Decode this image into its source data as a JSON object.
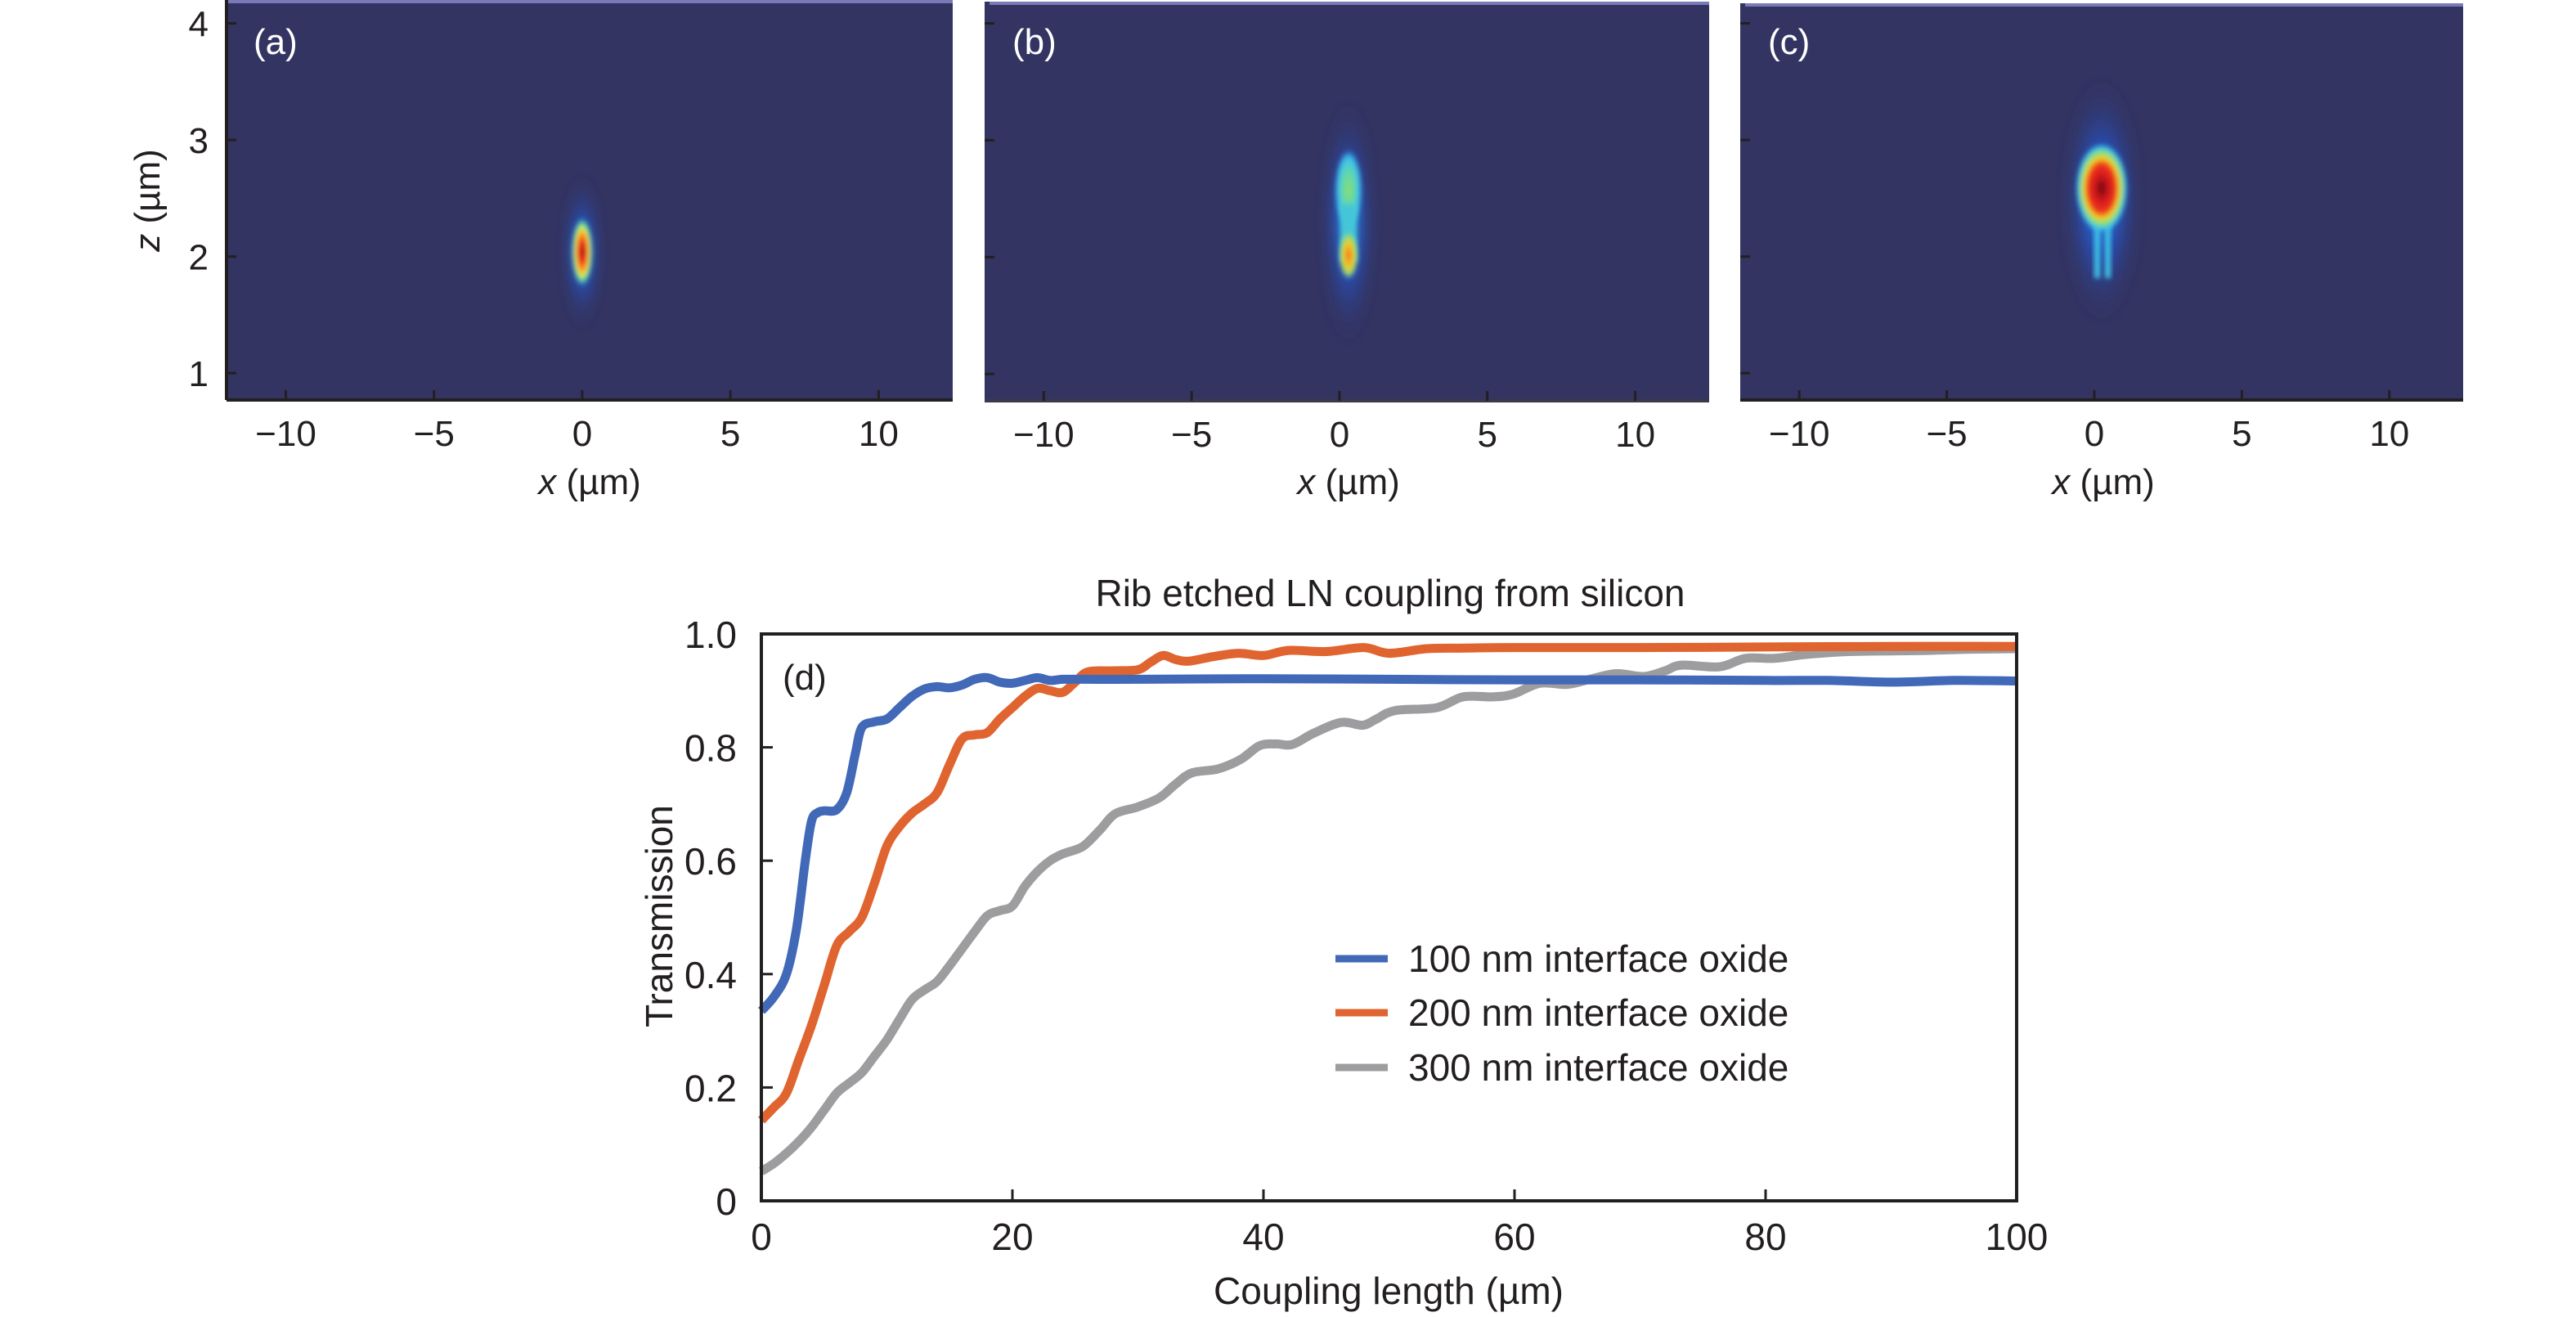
{
  "figure": {
    "panels_top": [
      {
        "id": "a",
        "label": "(a)",
        "xlabel_var": "x",
        "xlabel_unit": " (µm)",
        "ylabel_var": "z",
        "ylabel_unit": " (µm)",
        "show_ylabel": true,
        "show_yticklabels": true,
        "x_ticks": [
          "−10",
          "−5",
          "0",
          "5",
          "10"
        ],
        "x_tick_values": [
          -10,
          -5,
          0,
          5,
          10
        ],
        "y_ticks": [
          "1",
          "2",
          "3",
          "4"
        ],
        "y_tick_values": [
          1,
          2,
          3,
          4
        ],
        "xlim": [
          -12,
          12.5
        ],
        "ylim": [
          0.77,
          4.2
        ],
        "mode": "Tightly confined mode in silicon waveguide, centered at x≈0, z≈2.0 µm"
      },
      {
        "id": "b",
        "label": "(b)",
        "xlabel_var": "x",
        "xlabel_unit": " (µm)",
        "show_ylabel": false,
        "show_yticklabels": false,
        "x_ticks": [
          "−10",
          "−5",
          "0",
          "5",
          "10"
        ],
        "x_tick_values": [
          -10,
          -5,
          0,
          5,
          10
        ],
        "y_tick_values": [
          1,
          2,
          3,
          4
        ],
        "xlim": [
          -12,
          12.5
        ],
        "ylim": [
          0.77,
          4.2
        ],
        "mode": "Hybrid mode transitioning: hot spot at z≈2.0 µm with lobe extending up to z≈2.6 µm"
      },
      {
        "id": "c",
        "label": "(c)",
        "xlabel_var": "x",
        "xlabel_unit": " (µm)",
        "show_ylabel": false,
        "show_yticklabels": false,
        "x_ticks": [
          "−10",
          "−5",
          "0",
          "5",
          "10"
        ],
        "x_tick_values": [
          -10,
          -5,
          0,
          5,
          10
        ],
        "y_tick_values": [
          1,
          2,
          3,
          4
        ],
        "xlim": [
          -12,
          12.5
        ],
        "ylim": [
          0.77,
          4.2
        ],
        "mode": "Mode transferred to LN rib, centered at x≈0, z≈2.6 µm"
      }
    ],
    "colors": {
      "heatmap_background": "#333462",
      "heatmap_top_edge": "#7a7ab8",
      "axis": "#231f20",
      "series_100": "#4169b8",
      "series_200": "#e0642f",
      "series_300": "#9d9d9f"
    }
  },
  "chart_data": [
    {
      "type": "heatmap",
      "panel": "a",
      "title": "",
      "xlabel": "x (µm)",
      "ylabel": "z (µm)",
      "xlim": [
        -12,
        12.5
      ],
      "ylim": [
        0.77,
        4.2
      ],
      "peak": {
        "x": 0,
        "z": 2.04
      },
      "annotation": "(a)"
    },
    {
      "type": "heatmap",
      "panel": "b",
      "title": "",
      "xlabel": "x (µm)",
      "ylabel": "",
      "xlim": [
        -12,
        12.5
      ],
      "ylim": [
        0.77,
        4.2
      ],
      "peak": {
        "x": 0,
        "z": 2.0
      },
      "secondary_lobe": {
        "x": 0,
        "z": 2.55
      },
      "annotation": "(b)"
    },
    {
      "type": "heatmap",
      "panel": "c",
      "title": "",
      "xlabel": "x (µm)",
      "ylabel": "",
      "xlim": [
        -12,
        12.5
      ],
      "ylim": [
        0.77,
        4.2
      ],
      "peak": {
        "x": 0,
        "z": 2.58
      },
      "annotation": "(c)"
    },
    {
      "type": "line",
      "panel": "d",
      "title": "Rib etched LN coupling from silicon",
      "annotation": "(d)",
      "xlabel": "Coupling length (µm)",
      "ylabel": "Transmission",
      "xlim": [
        0,
        100
      ],
      "ylim": [
        0,
        1.0
      ],
      "x_ticks": [
        0,
        20,
        40,
        60,
        80,
        100
      ],
      "x_tick_labels": [
        "0",
        "20",
        "40",
        "60",
        "80",
        "100"
      ],
      "y_ticks": [
        0,
        0.2,
        0.4,
        0.6,
        0.8,
        1.0
      ],
      "y_tick_labels": [
        "0",
        "0.2",
        "0.4",
        "0.6",
        "0.8",
        "1.0"
      ],
      "grid": false,
      "legend_position": "center-right",
      "series": [
        {
          "name": "100 nm interface oxide",
          "color": "#4169b8",
          "x": [
            0,
            1,
            2,
            2.8,
            3.5,
            4,
            4.5,
            5,
            6,
            6.8,
            7.5,
            8,
            9,
            10,
            11,
            12,
            13,
            14,
            15,
            16,
            17,
            18,
            19,
            20,
            21,
            22,
            23,
            24,
            26,
            30,
            40,
            50,
            60,
            70,
            80,
            85,
            90,
            95,
            100
          ],
          "y": [
            0.335,
            0.36,
            0.4,
            0.48,
            0.6,
            0.67,
            0.685,
            0.688,
            0.69,
            0.72,
            0.79,
            0.835,
            0.845,
            0.85,
            0.87,
            0.89,
            0.903,
            0.907,
            0.905,
            0.91,
            0.92,
            0.923,
            0.915,
            0.913,
            0.918,
            0.923,
            0.918,
            0.92,
            0.92,
            0.92,
            0.921,
            0.92,
            0.919,
            0.919,
            0.918,
            0.918,
            0.915,
            0.918,
            0.917
          ]
        },
        {
          "name": "200 nm interface oxide",
          "color": "#e0642f",
          "x": [
            0,
            1,
            2,
            3,
            4,
            5,
            6,
            7,
            8,
            9,
            10,
            11,
            12,
            13,
            14,
            15,
            16,
            17,
            18,
            19,
            20,
            21,
            22,
            23,
            24,
            25,
            26,
            28,
            30,
            31,
            32,
            33,
            34,
            36,
            38,
            40,
            42,
            45,
            48,
            50,
            53,
            56,
            60,
            70,
            80,
            90,
            100
          ],
          "y": [
            0.142,
            0.165,
            0.19,
            0.25,
            0.31,
            0.38,
            0.45,
            0.475,
            0.5,
            0.56,
            0.626,
            0.66,
            0.684,
            0.7,
            0.72,
            0.77,
            0.815,
            0.822,
            0.826,
            0.85,
            0.87,
            0.89,
            0.904,
            0.9,
            0.897,
            0.915,
            0.933,
            0.935,
            0.937,
            0.95,
            0.962,
            0.955,
            0.952,
            0.96,
            0.966,
            0.962,
            0.971,
            0.969,
            0.976,
            0.966,
            0.974,
            0.975,
            0.976,
            0.976,
            0.977,
            0.978,
            0.978
          ]
        },
        {
          "name": "300 nm interface oxide",
          "color": "#9d9d9f",
          "x": [
            0,
            1,
            2,
            3,
            4,
            5,
            6,
            7,
            8,
            9,
            10,
            11,
            12,
            13,
            14,
            15,
            16,
            17,
            18,
            19,
            20,
            21,
            22,
            23,
            24,
            25.6,
            27,
            28.2,
            30,
            31.7,
            33,
            34.3,
            36.4,
            38.2,
            39.7,
            41,
            42.3,
            44,
            46.2,
            47.9,
            49,
            50.5,
            53.8,
            55.9,
            58.3,
            59.9,
            62,
            64.2,
            66,
            68.1,
            70.3,
            72,
            73.3,
            76.3,
            78.4,
            80.7,
            83.3,
            86.6,
            90,
            93,
            96,
            100
          ],
          "y": [
            0.052,
            0.066,
            0.084,
            0.105,
            0.13,
            0.16,
            0.19,
            0.208,
            0.226,
            0.255,
            0.284,
            0.32,
            0.355,
            0.372,
            0.387,
            0.415,
            0.445,
            0.475,
            0.503,
            0.512,
            0.52,
            0.555,
            0.581,
            0.6,
            0.612,
            0.625,
            0.655,
            0.683,
            0.695,
            0.711,
            0.735,
            0.755,
            0.762,
            0.779,
            0.803,
            0.806,
            0.805,
            0.825,
            0.844,
            0.839,
            0.85,
            0.865,
            0.87,
            0.889,
            0.889,
            0.894,
            0.913,
            0.911,
            0.92,
            0.93,
            0.925,
            0.935,
            0.945,
            0.942,
            0.957,
            0.957,
            0.964,
            0.969,
            0.97,
            0.971,
            0.973,
            0.974
          ]
        }
      ]
    }
  ]
}
